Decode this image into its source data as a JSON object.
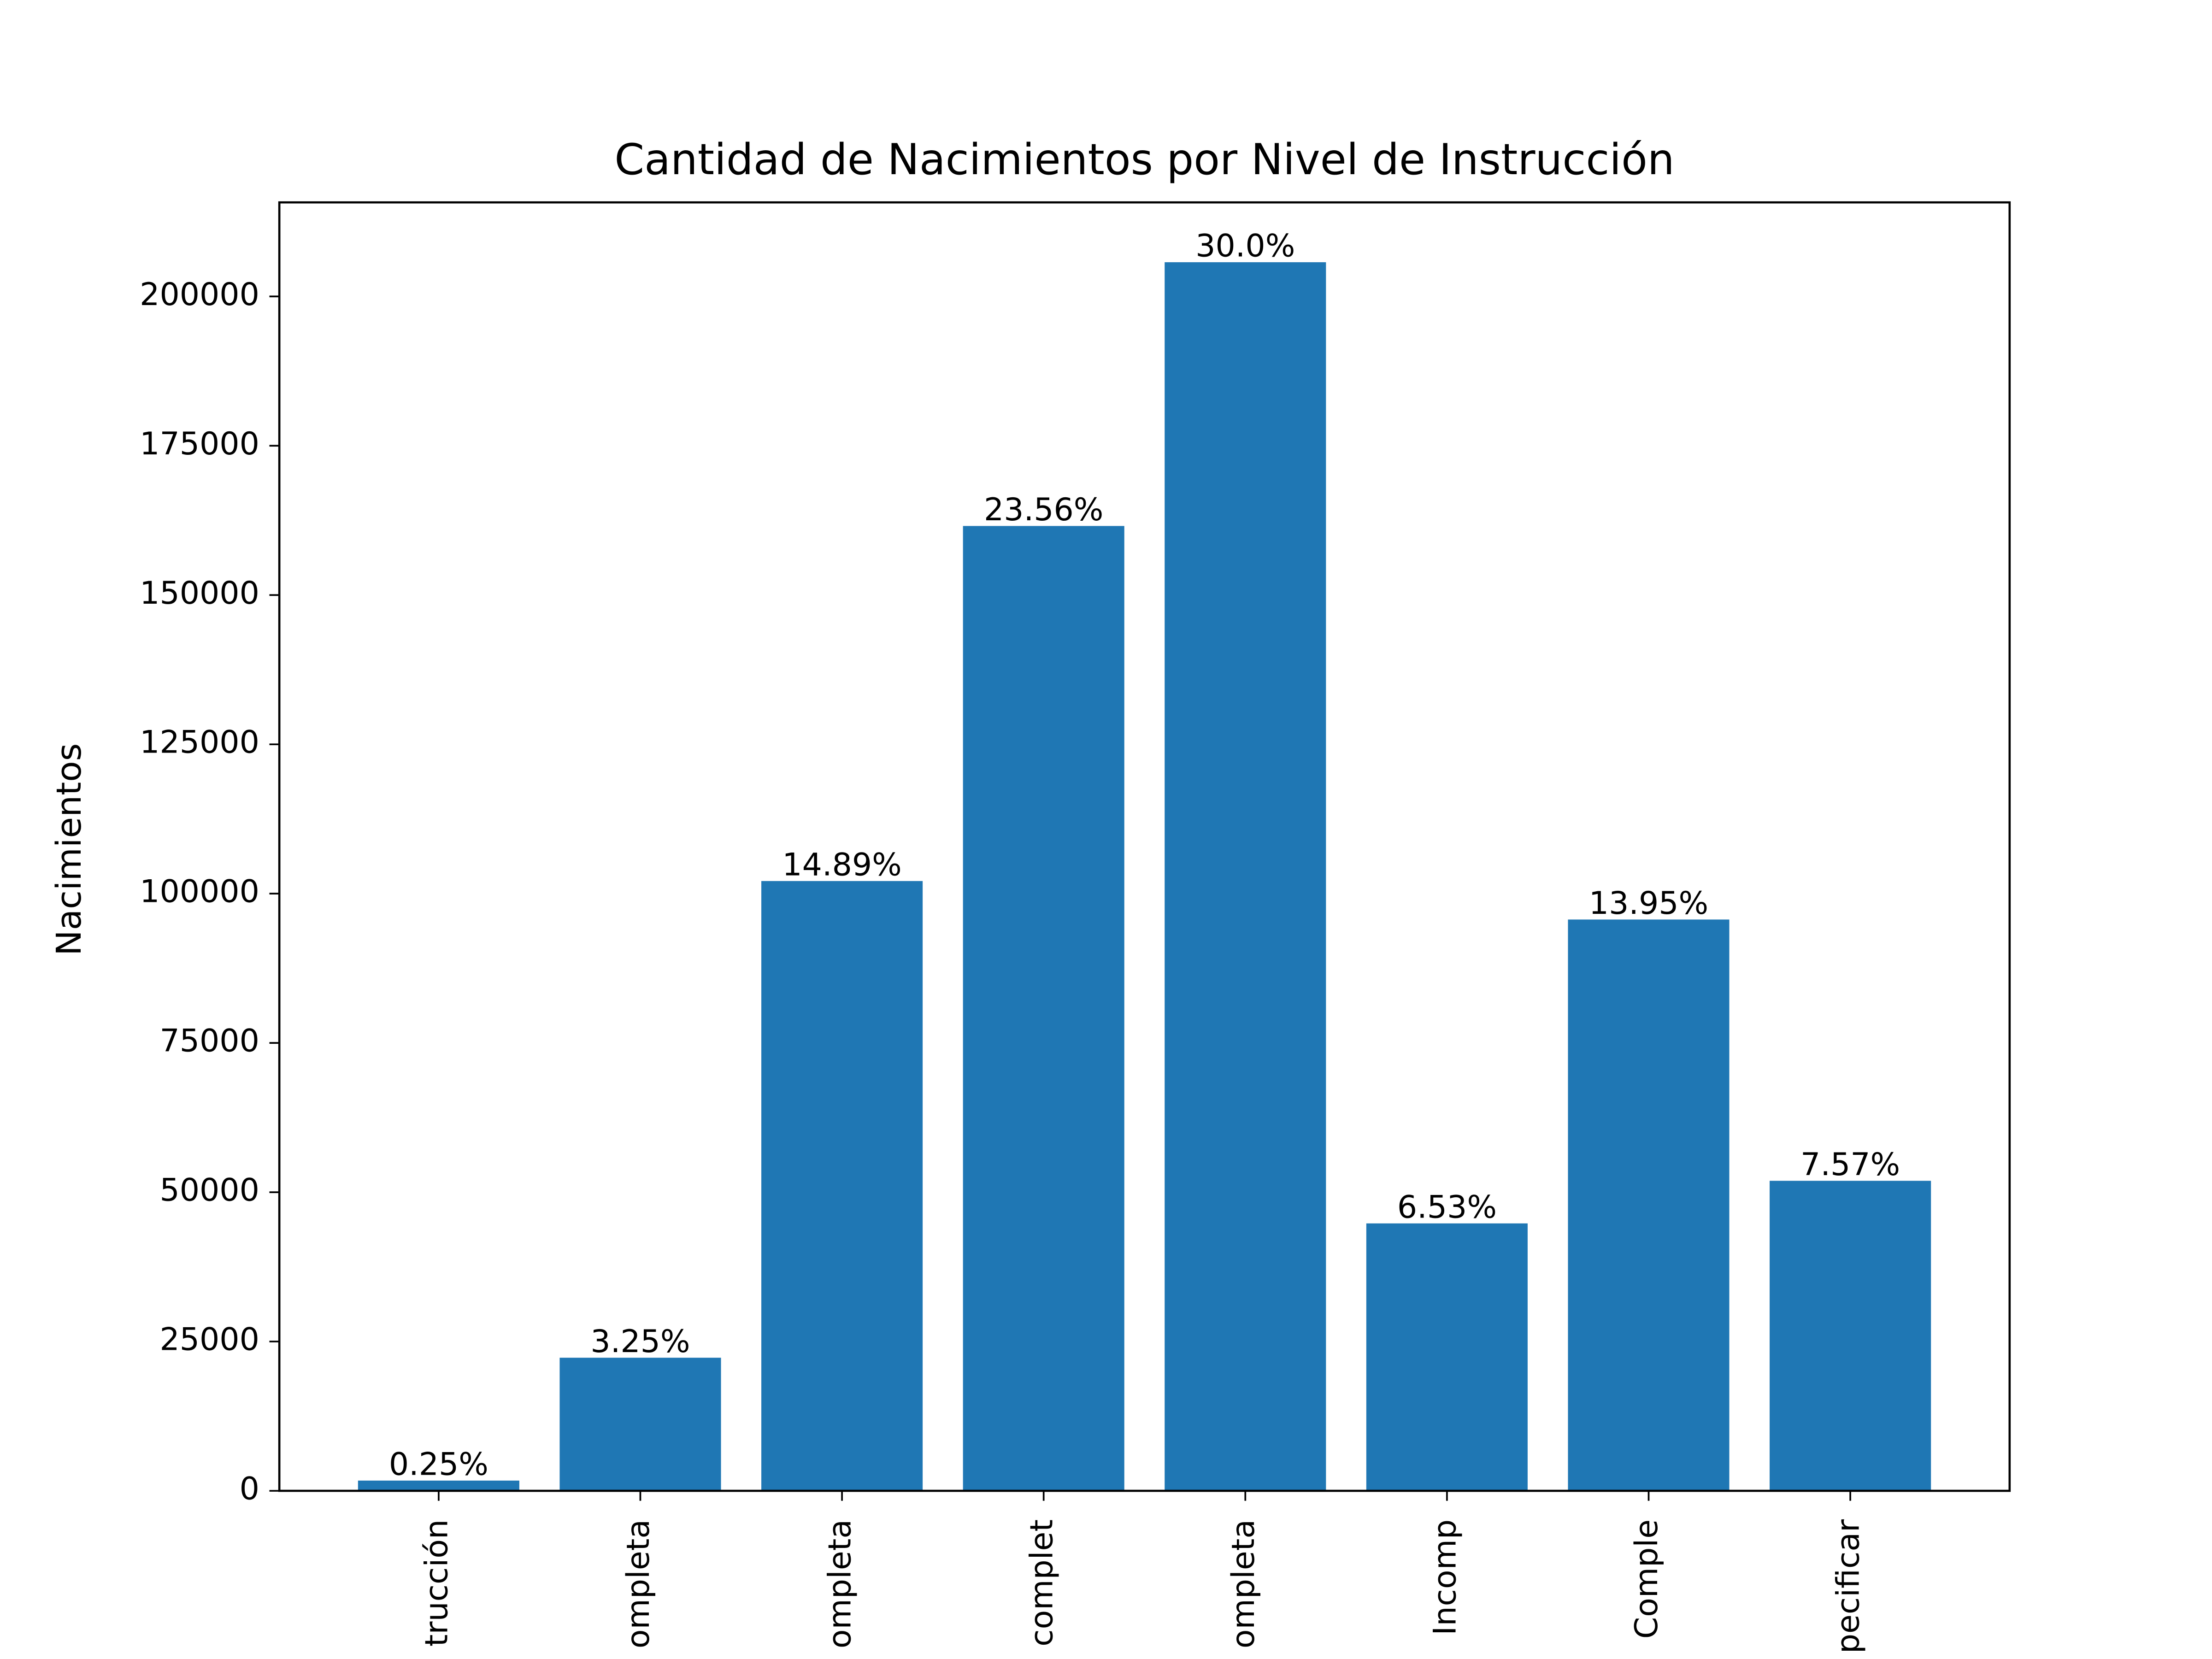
{
  "chart_data": {
    "type": "bar",
    "title": "Cantidad de Nacimientos por Nivel de Instrucción",
    "y_label": "Nacimientos",
    "categories": [
      "trucción",
      "ompleta",
      "ompleta",
      "complet",
      "ompleta",
      "Incomp",
      "Comple",
      "pecificar"
    ],
    "values": [
      1714,
      22287,
      102110,
      161565,
      205728,
      44780,
      95664,
      51912
    ],
    "bar_labels": [
      "0.25%",
      "3.25%",
      "14.89%",
      "23.56%",
      "30.0%",
      "6.53%",
      "13.95%",
      "7.57%"
    ],
    "color": "#1f77b4",
    "ylim": [
      0,
      215750
    ],
    "yticks": [
      0,
      25000,
      50000,
      75000,
      100000,
      125000,
      150000,
      175000,
      200000
    ]
  }
}
